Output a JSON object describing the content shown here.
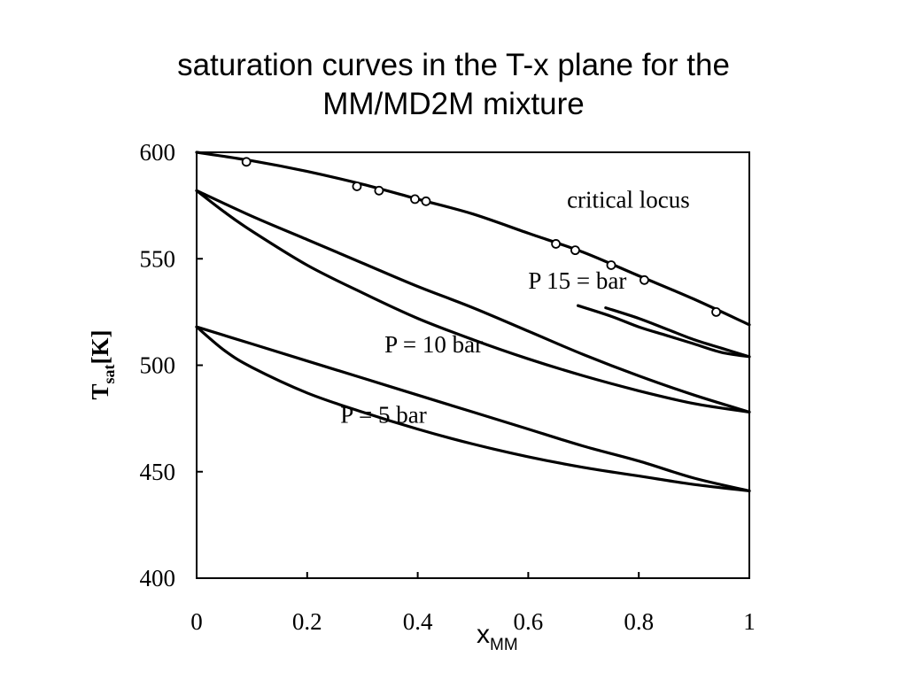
{
  "slide": {
    "title_line1": "saturation curves in the T-x plane for the",
    "title_line2": "MM/MD2M mixture"
  },
  "chart_data": {
    "type": "line",
    "xlim": [
      0,
      1
    ],
    "ylim": [
      400,
      600
    ],
    "x_ticks": [
      0,
      0.2,
      0.4,
      0.6,
      0.8,
      1
    ],
    "x_tick_labels": [
      "0",
      "0.2",
      "0.4",
      "0.6",
      "0.8",
      "1"
    ],
    "y_ticks": [
      400,
      450,
      500,
      550,
      600
    ],
    "y_tick_labels": [
      "400",
      "450",
      "500",
      "550",
      "600"
    ],
    "xlabel": {
      "main": "x",
      "sub": "MM"
    },
    "ylabel": {
      "main": "T",
      "sub": "sat",
      "unit": "[K]"
    },
    "grid": false,
    "annotations": [
      {
        "text": "critical locus",
        "x": 0.67,
        "y": 574
      },
      {
        "text": "P 15 = bar",
        "x": 0.6,
        "y": 536
      },
      {
        "text": "P = 10 bar",
        "x": 0.34,
        "y": 506
      },
      {
        "text": "P = 5 bar",
        "x": 0.26,
        "y": 473
      }
    ],
    "series": [
      {
        "x": [
          0,
          0.1,
          0.2,
          0.3,
          0.4,
          0.5,
          0.6,
          0.7,
          0.8,
          0.9,
          1.0
        ],
        "y": [
          600,
          596,
          591,
          585,
          578,
          571,
          562,
          553,
          542,
          531,
          519
        ]
      },
      {
        "x": [
          0,
          0.1,
          0.2,
          0.3,
          0.4,
          0.5,
          0.6,
          0.7,
          0.8,
          0.9,
          1.0
        ],
        "y": [
          582,
          570,
          559,
          548,
          537,
          527,
          516,
          505,
          495,
          486,
          478
        ]
      },
      {
        "x": [
          0,
          0.05,
          0.1,
          0.2,
          0.3,
          0.4,
          0.5,
          0.6,
          0.7,
          0.8,
          0.9,
          1.0
        ],
        "y": [
          582,
          572,
          563,
          547,
          534,
          522,
          512,
          503,
          495,
          488,
          482,
          478
        ]
      },
      {
        "x": [
          0,
          0.1,
          0.2,
          0.3,
          0.4,
          0.5,
          0.6,
          0.7,
          0.8,
          0.9,
          1.0
        ],
        "y": [
          518,
          510,
          502,
          494,
          486,
          478,
          470,
          462,
          455,
          447,
          441
        ]
      },
      {
        "x": [
          0,
          0.05,
          0.1,
          0.2,
          0.3,
          0.4,
          0.5,
          0.6,
          0.7,
          0.8,
          0.9,
          1.0
        ],
        "y": [
          518,
          507,
          499,
          487,
          478,
          470,
          463,
          457,
          452,
          448,
          444,
          441
        ]
      },
      {
        "x": [
          0.69,
          0.75,
          0.8,
          0.85,
          0.9,
          0.95,
          1.0
        ],
        "y": [
          528,
          523,
          518,
          514,
          510,
          506,
          504
        ]
      },
      {
        "x": [
          0.74,
          0.8,
          0.85,
          0.9,
          0.95,
          1.0
        ],
        "y": [
          527,
          522,
          517,
          512,
          508,
          504
        ]
      }
    ],
    "points": {
      "x": [
        0.09,
        0.29,
        0.33,
        0.395,
        0.415,
        0.65,
        0.685,
        0.75,
        0.81,
        0.94
      ],
      "y": [
        595.5,
        584,
        582,
        578,
        577,
        557,
        554,
        547,
        540,
        525
      ]
    }
  }
}
